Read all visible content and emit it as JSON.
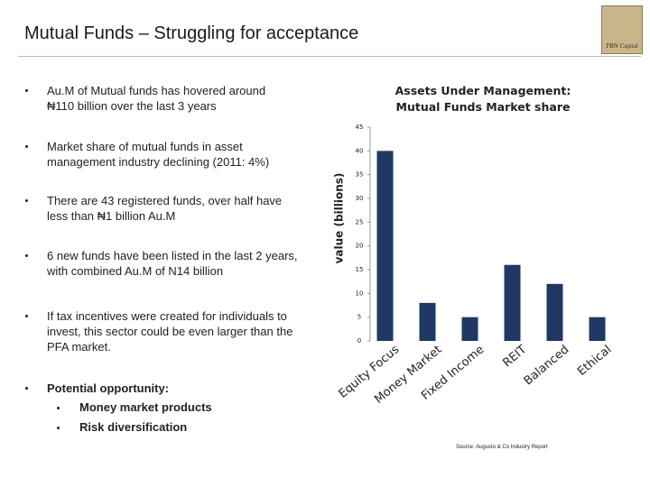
{
  "header": {
    "title": "Mutual Funds – Struggling for acceptance",
    "logo": "FBN Capital"
  },
  "bullets": [
    "Au.M of Mutual funds has hovered around ₦110 billion over the last 3 years",
    "Market share of mutual funds in asset management industry declining (2011: 4%)",
    "There are 43 registered funds, over half have less than ₦1 billion Au.M",
    "6 new funds have been listed in the last 2 years, with combined Au.M of N14 billion",
    "If tax incentives were created for individuals to invest, this sector could be even larger than the PFA market."
  ],
  "opportunity": {
    "title": "Potential opportunity:",
    "items": [
      "Money market products",
      "Risk diversification"
    ]
  },
  "chart_data": {
    "type": "bar",
    "title": "Assets Under Management: Mutual Funds Market share",
    "y_label": "value (billions)",
    "categories": [
      "Equity Focus",
      "Money Market",
      "Fixed Income",
      "REIT",
      "Balanced",
      "Ethical"
    ],
    "values": [
      40,
      8,
      5,
      16,
      12,
      5
    ],
    "color": "#1f3864",
    "ylim": [
      0,
      45
    ],
    "yticks": [
      0,
      5,
      10,
      15,
      20,
      25,
      30,
      35,
      40,
      45
    ],
    "grid": false,
    "source": "Source: Augusto & Co Industry Report"
  }
}
